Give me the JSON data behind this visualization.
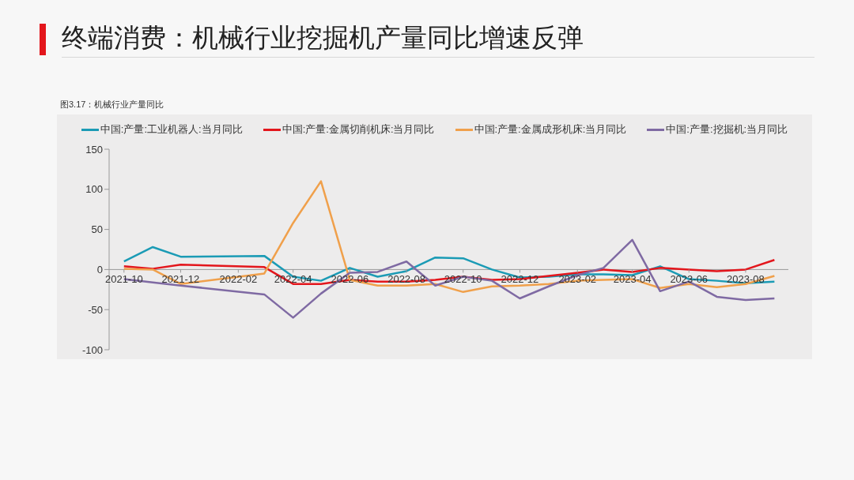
{
  "chart_data": {
    "type": "line",
    "title": "终端消费：机械行业挖掘机产量同比增速反弹",
    "subtitle": "图3.17：机械行业产量同比",
    "x": [
      "2021-10",
      "2021-11",
      "2021-12",
      "2022-03",
      "2022-04",
      "2022-05",
      "2022-06",
      "2022-07",
      "2022-08",
      "2022-09",
      "2022-10",
      "2022-11",
      "2022-12",
      "2023-01",
      "2023-02",
      "2023-03",
      "2023-04",
      "2023-05",
      "2023-06",
      "2023-07",
      "2023-08",
      "2023-09"
    ],
    "series": [
      {
        "name": "中国:产量:工业机器人:当月同比",
        "color": "#1b9bb5",
        "values": [
          10,
          28,
          16,
          17,
          -9,
          -14,
          2,
          -9,
          -2,
          15,
          14,
          0,
          -10,
          -9,
          -6,
          -6,
          -7,
          4,
          -12,
          -14,
          -17,
          -15
        ]
      },
      {
        "name": "中国:产量:金属切削机床:当月同比",
        "color": "#e3161c",
        "values": [
          4,
          1,
          6,
          3,
          -18,
          -18,
          -13,
          -15,
          -15,
          -13,
          -9,
          -13,
          -12,
          -8,
          -4,
          0,
          -3,
          2,
          0,
          -2,
          0,
          12
        ]
      },
      {
        "name": "中国:产量:金属成形机床:当月同比",
        "color": "#f0a04b",
        "values": [
          1,
          0,
          -18,
          -5,
          58,
          110,
          -13,
          -20,
          -20,
          -18,
          -28,
          -21,
          -20,
          -18,
          -14,
          -13,
          -12,
          -23,
          -18,
          -22,
          -18,
          -8
        ]
      },
      {
        "name": "中国:产量:挖掘机:当月同比",
        "color": "#7f6aa3",
        "values": [
          -12,
          -16,
          -20,
          -31,
          -60,
          -30,
          -4,
          -3,
          10,
          -20,
          -9,
          -14,
          -36,
          -21,
          -7,
          2,
          37,
          -27,
          -15,
          -34,
          -38,
          -36
        ]
      }
    ],
    "xlim": [
      "2021-09-15",
      "2023-09-16"
    ],
    "xticks": [
      "2021-10",
      "2021-12",
      "2022-02",
      "2022-04",
      "2022-06",
      "2022-08",
      "2022-10",
      "2022-12",
      "2023-02",
      "2023-04",
      "2023-06",
      "2023-08"
    ],
    "ylim": [
      -100,
      150
    ],
    "yticks": [
      -100,
      -50,
      0,
      50,
      100,
      150
    ],
    "grid": false,
    "legend": "top",
    "marker": "none",
    "line_style": "solid"
  }
}
